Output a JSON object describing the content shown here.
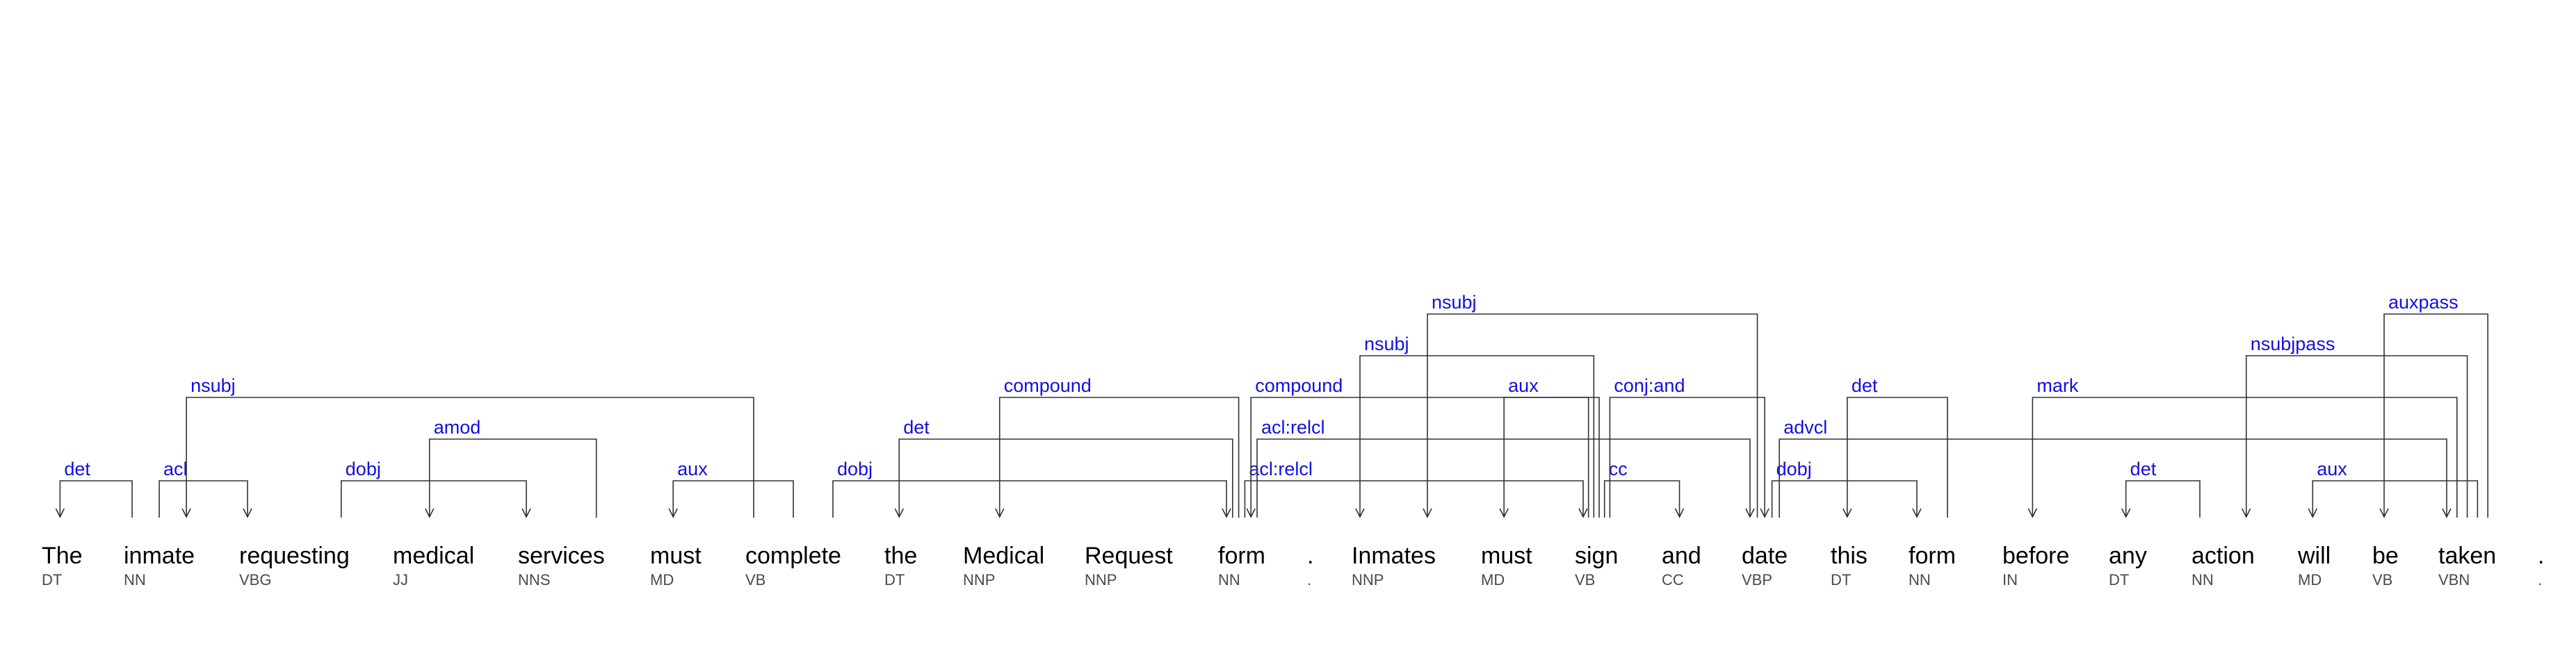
{
  "diagram": {
    "colors": {
      "word": "#000000",
      "tag": "#4a4a4a",
      "label": "#1010e8",
      "line": "#333333"
    },
    "tokens": [
      {
        "word": "The",
        "tag": "DT"
      },
      {
        "word": "inmate",
        "tag": "NN"
      },
      {
        "word": "requesting",
        "tag": "VBG"
      },
      {
        "word": "medical",
        "tag": "JJ"
      },
      {
        "word": "services",
        "tag": "NNS"
      },
      {
        "word": "must",
        "tag": "MD"
      },
      {
        "word": "complete",
        "tag": "VB"
      },
      {
        "word": "the",
        "tag": "DT"
      },
      {
        "word": "Medical",
        "tag": "NNP"
      },
      {
        "word": "Request",
        "tag": "NNP"
      },
      {
        "word": "form",
        "tag": "NN"
      },
      {
        "word": ".",
        "tag": "."
      },
      {
        "word": "Inmates",
        "tag": "NNP"
      },
      {
        "word": "must",
        "tag": "MD"
      },
      {
        "word": "sign",
        "tag": "VB"
      },
      {
        "word": "and",
        "tag": "CC"
      },
      {
        "word": "date",
        "tag": "VBP"
      },
      {
        "word": "this",
        "tag": "DT"
      },
      {
        "word": "form",
        "tag": "NN"
      },
      {
        "word": "before",
        "tag": "IN"
      },
      {
        "word": "any",
        "tag": "DT"
      },
      {
        "word": "action",
        "tag": "NN"
      },
      {
        "word": "will",
        "tag": "MD"
      },
      {
        "word": "be",
        "tag": "VB"
      },
      {
        "word": "taken",
        "tag": "VBN"
      },
      {
        "word": ".",
        "tag": "."
      }
    ],
    "arcs": [
      {
        "label": "det",
        "head": 1,
        "dep": 0,
        "level": 1
      },
      {
        "label": "acl",
        "head": 1,
        "dep": 2,
        "level": 1
      },
      {
        "label": "dobj",
        "head": 2,
        "dep": 4,
        "level": 1
      },
      {
        "label": "amod",
        "head": 4,
        "dep": 3,
        "level": 2
      },
      {
        "label": "nsubj",
        "head": 6,
        "dep": 1,
        "level": 3
      },
      {
        "label": "aux",
        "head": 6,
        "dep": 5,
        "level": 1
      },
      {
        "label": "dobj",
        "head": 6,
        "dep": 10,
        "level": 1
      },
      {
        "label": "det",
        "head": 10,
        "dep": 7,
        "level": 2
      },
      {
        "label": "compound",
        "head": 10,
        "dep": 8,
        "level": 3
      },
      {
        "label": "acl:relcl",
        "head": 10,
        "dep": 14,
        "level": 1
      },
      {
        "label": "acl:relcl",
        "head": 10,
        "dep": 16,
        "level": 2
      },
      {
        "label": "compound",
        "head": 14,
        "dep": 10,
        "level": 3
      },
      {
        "label": "nsubj",
        "head": 14,
        "dep": 12,
        "level": 4
      },
      {
        "label": "aux",
        "head": 14,
        "dep": 13,
        "level": 3
      },
      {
        "label": "nsubj",
        "head": 16,
        "dep": 12,
        "level": 5
      },
      {
        "label": "conj:and",
        "head": 14,
        "dep": 16,
        "level": 3
      },
      {
        "label": "cc",
        "head": 14,
        "dep": 15,
        "level": 1
      },
      {
        "label": "dobj",
        "head": 16,
        "dep": 18,
        "level": 1
      },
      {
        "label": "det",
        "head": 18,
        "dep": 17,
        "level": 3
      },
      {
        "label": "advcl",
        "head": 16,
        "dep": 24,
        "level": 2
      },
      {
        "label": "mark",
        "head": 24,
        "dep": 19,
        "level": 3
      },
      {
        "label": "det",
        "head": 21,
        "dep": 20,
        "level": 1
      },
      {
        "label": "nsubjpass",
        "head": 24,
        "dep": 21,
        "level": 4
      },
      {
        "label": "aux",
        "head": 24,
        "dep": 22,
        "level": 1
      },
      {
        "label": "auxpass",
        "head": 24,
        "dep": 23,
        "level": 5
      }
    ]
  }
}
